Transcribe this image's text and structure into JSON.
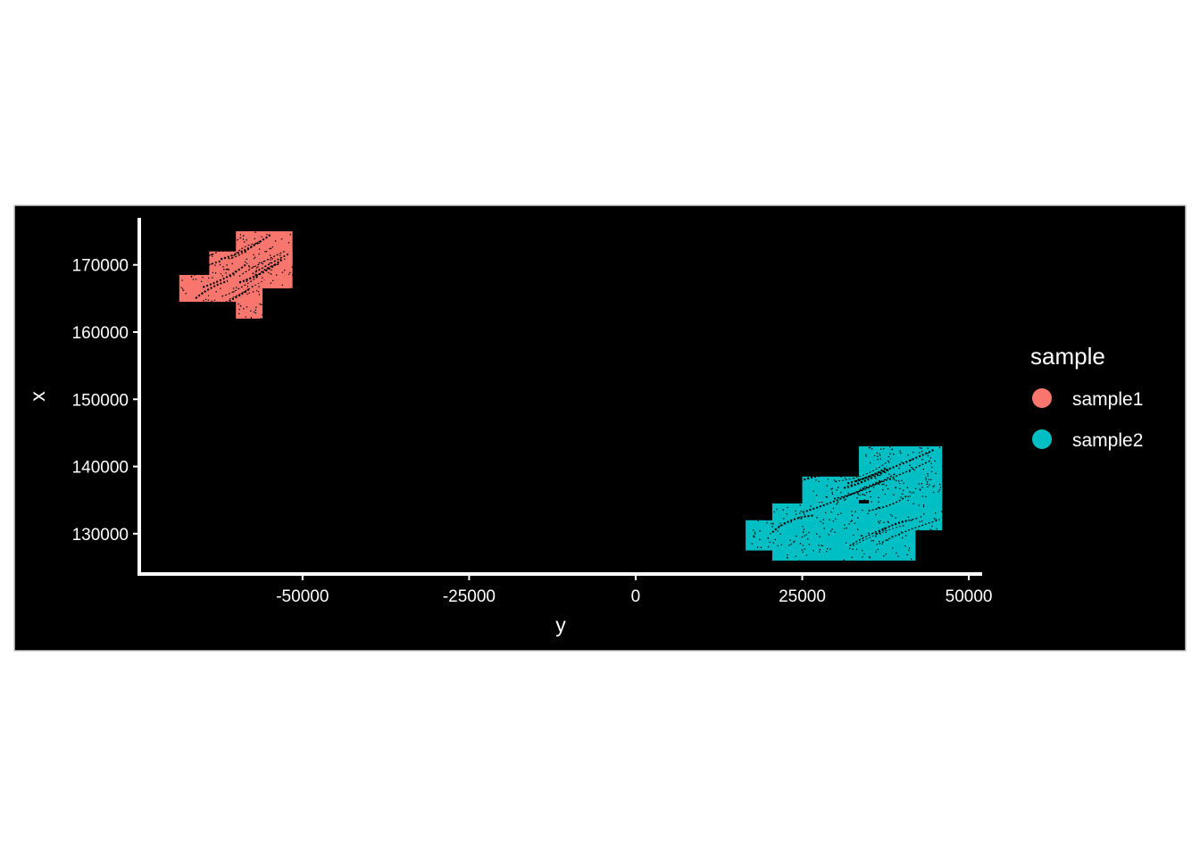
{
  "chart_data": {
    "type": "scatter",
    "title": "",
    "xlabel": "y",
    "ylabel": "x",
    "xlim": [
      -74500,
      52000
    ],
    "ylim": [
      124000,
      177000
    ],
    "x_ticks": [
      -50000,
      -25000,
      0,
      25000,
      50000
    ],
    "x_tick_labels": [
      "-50000",
      "-25000",
      "0",
      "25000",
      "50000"
    ],
    "y_ticks": [
      130000,
      140000,
      150000,
      160000,
      170000
    ],
    "y_tick_labels": [
      "130000",
      "140000",
      "150000",
      "160000",
      "170000"
    ],
    "grid": false,
    "background": "#000000",
    "legend": {
      "title": "sample",
      "position": "right",
      "entries": [
        {
          "label": "sample1",
          "color": "#F8766D"
        },
        {
          "label": "sample2",
          "color": "#00BFC4"
        }
      ]
    },
    "series": [
      {
        "name": "sample1",
        "color": "#F8766D",
        "regions": [
          {
            "x": [
              -60000,
              -51500
            ],
            "y": [
              170000,
              175000
            ]
          },
          {
            "x": [
              -64000,
              -51500
            ],
            "y": [
              166500,
              172000
            ]
          },
          {
            "x": [
              -68500,
              -59000
            ],
            "y": [
              164500,
              168500
            ]
          },
          {
            "x": [
              -60000,
              -56000
            ],
            "y": [
              162000,
              166500
            ]
          }
        ]
      },
      {
        "name": "sample2",
        "color": "#00BFC4",
        "regions": [
          {
            "x": [
              33500,
              46000
            ],
            "y": [
              135000,
              143000
            ]
          },
          {
            "x": [
              35000,
              46000
            ],
            "y": [
              130500,
              137000
            ]
          },
          {
            "x": [
              25000,
              33500
            ],
            "y": [
              134000,
              138500
            ]
          },
          {
            "x": [
              20500,
              42000
            ],
            "y": [
              126000,
              134500
            ]
          },
          {
            "x": [
              16500,
              22000
            ],
            "y": [
              127500,
              132000
            ]
          }
        ]
      }
    ]
  }
}
